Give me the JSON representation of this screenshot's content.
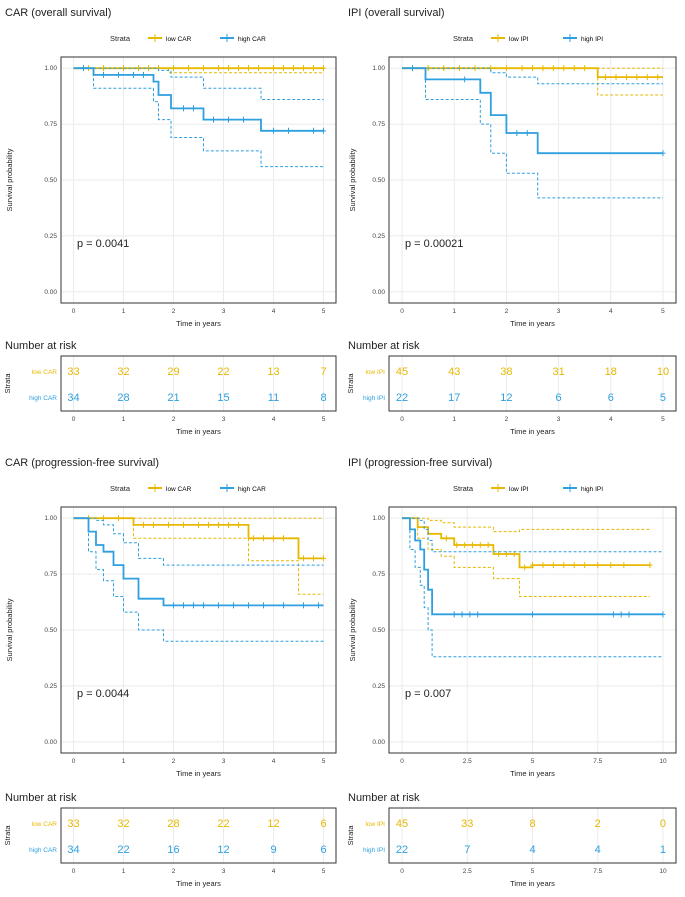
{
  "colors": {
    "low": "#E7B800",
    "high": "#2E9FDF",
    "grid": "#ebebeb",
    "border": "#333333"
  },
  "chart_data": [
    {
      "type": "line",
      "title": "CAR (overall survival)",
      "legend": {
        "title": "Strata",
        "labels": [
          "low CAR",
          "high CAR"
        ]
      },
      "xlabel": "Time in years",
      "ylabel": "Survival probability",
      "xlim": [
        0,
        5
      ],
      "ylim": [
        0,
        1
      ],
      "xticks": [
        "0",
        "1",
        "2",
        "3",
        "4",
        "5"
      ],
      "yticks": [
        "0.00",
        "0.25",
        "0.50",
        "0.75",
        "1.00"
      ],
      "p_value": "p = 0.0041",
      "series": [
        {
          "name": "low CAR",
          "color": "low",
          "x": [
            0,
            5
          ],
          "y": [
            1.0,
            1.0
          ],
          "ci_upper": {
            "x": [
              0,
              5
            ],
            "y": [
              1.0,
              1.0
            ]
          },
          "ci_lower": {
            "x": [
              0,
              1.9,
              5
            ],
            "y": [
              1.0,
              0.98,
              0.98
            ]
          },
          "censor": [
            0.3,
            0.6,
            1.0,
            1.3,
            1.5,
            1.7,
            2.0,
            2.3,
            2.6,
            2.9,
            3.1,
            3.3,
            3.5,
            3.7,
            4.0,
            4.2,
            4.4,
            4.6,
            4.8,
            5.0
          ]
        },
        {
          "name": "high CAR",
          "color": "high",
          "x": [
            0,
            0.4,
            1.6,
            1.7,
            1.95,
            2.6,
            3.75,
            5
          ],
          "y": [
            1.0,
            0.97,
            0.94,
            0.88,
            0.82,
            0.77,
            0.72,
            0.72
          ],
          "ci_upper": {
            "x": [
              0,
              0.4,
              1.6,
              1.7,
              1.95,
              2.6,
              3.75,
              5
            ],
            "y": [
              1.0,
              1.0,
              1.0,
              0.99,
              0.96,
              0.91,
              0.86,
              0.86
            ]
          },
          "ci_lower": {
            "x": [
              0,
              0.4,
              1.6,
              1.7,
              1.95,
              2.6,
              3.75,
              5
            ],
            "y": [
              1.0,
              0.91,
              0.85,
              0.77,
              0.69,
              0.63,
              0.56,
              0.56
            ]
          },
          "censor": [
            0.2,
            0.6,
            0.9,
            1.2,
            1.4,
            2.2,
            2.4,
            2.8,
            3.1,
            3.4,
            4.0,
            4.3,
            4.8,
            5.0
          ]
        }
      ],
      "risk_table": {
        "title": "Number at risk",
        "axis_label": "Strata",
        "xlabel": "Time in years",
        "rows": [
          {
            "label": "low CAR",
            "color": "low",
            "values": [
              "33",
              "32",
              "29",
              "22",
              "13",
              "7"
            ]
          },
          {
            "label": "high CAR",
            "color": "high",
            "values": [
              "34",
              "28",
              "21",
              "15",
              "11",
              "8"
            ]
          }
        ]
      }
    },
    {
      "type": "line",
      "title": "IPI (overall survival)",
      "legend": {
        "title": "Strata",
        "labels": [
          "low IPI",
          "high IPI"
        ]
      },
      "xlabel": "Time in years",
      "ylabel": "Survival probability",
      "xlim": [
        0,
        5
      ],
      "ylim": [
        0,
        1
      ],
      "xticks": [
        "0",
        "1",
        "2",
        "3",
        "4",
        "5"
      ],
      "yticks": [
        "0.00",
        "0.25",
        "0.50",
        "0.75",
        "1.00"
      ],
      "p_value": "p = 0.00021",
      "series": [
        {
          "name": "low IPI",
          "color": "low",
          "x": [
            0,
            3.75,
            5
          ],
          "y": [
            1.0,
            0.96,
            0.96
          ],
          "ci_upper": {
            "x": [
              0,
              5
            ],
            "y": [
              1.0,
              1.0
            ]
          },
          "ci_lower": {
            "x": [
              0,
              3.75,
              5
            ],
            "y": [
              1.0,
              0.88,
              0.88
            ]
          },
          "censor": [
            0.2,
            0.5,
            0.8,
            1.1,
            1.4,
            1.7,
            2.0,
            2.3,
            2.5,
            2.7,
            2.9,
            3.1,
            3.3,
            3.5,
            3.9,
            4.1,
            4.3,
            4.5,
            4.7,
            4.9
          ]
        },
        {
          "name": "high IPI",
          "color": "high",
          "x": [
            0,
            0.45,
            1.5,
            1.7,
            2.0,
            2.6,
            5
          ],
          "y": [
            1.0,
            0.95,
            0.89,
            0.79,
            0.71,
            0.62,
            0.62
          ],
          "ci_upper": {
            "x": [
              0,
              0.45,
              1.5,
              1.7,
              2.0,
              2.6,
              5
            ],
            "y": [
              1.0,
              1.0,
              1.0,
              0.98,
              0.96,
              0.93,
              0.93
            ]
          },
          "ci_lower": {
            "x": [
              0,
              0.45,
              1.5,
              1.7,
              2.0,
              2.6,
              5
            ],
            "y": [
              1.0,
              0.86,
              0.75,
              0.62,
              0.53,
              0.42,
              0.42
            ]
          },
          "censor": [
            0.2,
            1.2,
            2.2,
            2.4,
            5.0
          ]
        }
      ],
      "risk_table": {
        "title": "Number at risk",
        "axis_label": "Strata",
        "xlabel": "Time in years",
        "rows": [
          {
            "label": "low IPI",
            "color": "low",
            "values": [
              "45",
              "43",
              "38",
              "31",
              "18",
              "10"
            ]
          },
          {
            "label": "high IPI",
            "color": "high",
            "values": [
              "22",
              "17",
              "12",
              "6",
              "6",
              "5"
            ]
          }
        ]
      }
    },
    {
      "type": "line",
      "title": "CAR (progression-free survival)",
      "legend": {
        "title": "Strata",
        "labels": [
          "low CAR",
          "high CAR"
        ]
      },
      "xlabel": "Time in years",
      "ylabel": "Survival probability",
      "xlim": [
        0,
        5
      ],
      "ylim": [
        0,
        1
      ],
      "xticks": [
        "0",
        "1",
        "2",
        "3",
        "4",
        "5"
      ],
      "yticks": [
        "0.00",
        "0.25",
        "0.50",
        "0.75",
        "1.00"
      ],
      "p_value": "p = 0.0044",
      "series": [
        {
          "name": "low CAR",
          "color": "low",
          "x": [
            0,
            1.2,
            3.5,
            4.5,
            5
          ],
          "y": [
            1.0,
            0.97,
            0.91,
            0.82,
            0.82
          ],
          "ci_upper": {
            "x": [
              0,
              5
            ],
            "y": [
              1.0,
              1.0
            ]
          },
          "ci_lower": {
            "x": [
              0,
              1.2,
              3.5,
              4.5,
              5
            ],
            "y": [
              1.0,
              0.91,
              0.81,
              0.66,
              0.66
            ]
          },
          "censor": [
            0.3,
            0.6,
            0.9,
            1.4,
            1.6,
            1.9,
            2.2,
            2.5,
            2.7,
            2.9,
            3.1,
            3.3,
            3.6,
            3.8,
            4.0,
            4.2,
            4.6,
            4.8,
            5.0
          ]
        },
        {
          "name": "high CAR",
          "color": "high",
          "x": [
            0,
            0.3,
            0.45,
            0.6,
            0.8,
            1.0,
            1.3,
            1.8,
            5
          ],
          "y": [
            1.0,
            0.94,
            0.88,
            0.85,
            0.79,
            0.73,
            0.64,
            0.61,
            0.61
          ],
          "ci_upper": {
            "x": [
              0,
              0.3,
              0.45,
              0.6,
              0.8,
              1.0,
              1.3,
              1.8,
              5
            ],
            "y": [
              1.0,
              1.0,
              0.99,
              0.97,
              0.93,
              0.89,
              0.82,
              0.79,
              0.79
            ]
          },
          "ci_lower": {
            "x": [
              0,
              0.3,
              0.45,
              0.6,
              0.8,
              1.0,
              1.3,
              1.8,
              5
            ],
            "y": [
              1.0,
              0.85,
              0.77,
              0.72,
              0.65,
              0.58,
              0.5,
              0.45,
              0.45
            ]
          },
          "censor": [
            2.0,
            2.2,
            2.4,
            2.6,
            2.9,
            3.2,
            3.5,
            3.8,
            4.2,
            4.6,
            4.9
          ]
        }
      ],
      "risk_table": {
        "title": "Number at risk",
        "axis_label": "Strata",
        "xlabel": "Time in years",
        "rows": [
          {
            "label": "low CAR",
            "color": "low",
            "values": [
              "33",
              "32",
              "28",
              "22",
              "12",
              "6"
            ]
          },
          {
            "label": "high CAR",
            "color": "high",
            "values": [
              "34",
              "22",
              "16",
              "12",
              "9",
              "6"
            ]
          }
        ]
      }
    },
    {
      "type": "line",
      "title": "IPI (progression-free survival)",
      "legend": {
        "title": "Strata",
        "labels": [
          "low IPI",
          "high IPI"
        ]
      },
      "xlabel": "Time in years",
      "ylabel": "Survival probability",
      "xlim": [
        0,
        10
      ],
      "ylim": [
        0,
        1
      ],
      "xticks": [
        "0",
        "2.5",
        "5",
        "7.5",
        "10"
      ],
      "yticks": [
        "0.00",
        "0.25",
        "0.50",
        "0.75",
        "1.00"
      ],
      "p_value": "p = 0.007",
      "series": [
        {
          "name": "low IPI",
          "color": "low",
          "x": [
            0,
            0.6,
            1.0,
            1.5,
            2.0,
            3.5,
            4.5,
            5,
            9.5
          ],
          "y": [
            1.0,
            0.96,
            0.93,
            0.91,
            0.88,
            0.84,
            0.78,
            0.79,
            0.79
          ],
          "ci_upper": {
            "x": [
              0,
              0.6,
              1.0,
              1.5,
              2.0,
              3.5,
              4.5,
              9.5
            ],
            "y": [
              1.0,
              1.0,
              0.99,
              0.98,
              0.96,
              0.94,
              0.95,
              0.95
            ]
          },
          "ci_lower": {
            "x": [
              0,
              0.6,
              1.0,
              1.5,
              2.0,
              3.5,
              4.5,
              9.5
            ],
            "y": [
              1.0,
              0.91,
              0.86,
              0.83,
              0.78,
              0.73,
              0.65,
              0.65
            ]
          },
          "censor": [
            1.7,
            2.1,
            2.4,
            2.7,
            3.0,
            3.3,
            3.7,
            4.0,
            4.3,
            4.7,
            5.0,
            5.4,
            5.8,
            6.2,
            6.6,
            7.0,
            7.5,
            8.0,
            8.5,
            9.5
          ]
        },
        {
          "name": "high IPI",
          "color": "high",
          "x": [
            0,
            0.3,
            0.5,
            0.7,
            0.85,
            1.0,
            1.15,
            10
          ],
          "y": [
            1.0,
            0.95,
            0.9,
            0.86,
            0.77,
            0.68,
            0.57,
            0.57
          ],
          "ci_upper": {
            "x": [
              0,
              0.3,
              0.5,
              0.7,
              0.85,
              1.0,
              1.15,
              10
            ],
            "y": [
              1.0,
              1.0,
              1.0,
              0.99,
              0.95,
              0.9,
              0.85,
              0.85
            ]
          },
          "ci_lower": {
            "x": [
              0,
              0.3,
              0.5,
              0.7,
              0.85,
              1.0,
              1.15,
              10
            ],
            "y": [
              1.0,
              0.86,
              0.78,
              0.7,
              0.6,
              0.5,
              0.38,
              0.38
            ]
          },
          "censor": [
            2.0,
            2.3,
            2.6,
            2.9,
            5.0,
            8.1,
            8.4,
            8.7,
            10.0
          ]
        }
      ],
      "risk_table": {
        "title": "Number at risk",
        "axis_label": "Strata",
        "xlabel": "Time in years",
        "rows": [
          {
            "label": "low IPI",
            "color": "low",
            "values": [
              "45",
              "33",
              "8",
              "2",
              "0"
            ]
          },
          {
            "label": "high IPI",
            "color": "high",
            "values": [
              "22",
              "7",
              "4",
              "4",
              "1"
            ]
          }
        ]
      }
    }
  ]
}
